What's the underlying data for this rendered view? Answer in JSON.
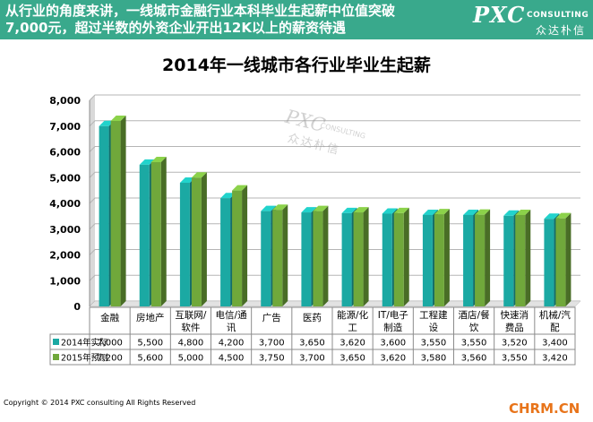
{
  "banner": {
    "title_line1": "从行业的角度来讲，一线城市金融行业本科毕业生起薪中位值突破",
    "title_line2": "7,000元，超过半数的外资企业开出12K以上的薪资待遇",
    "logo_main": "PXC",
    "logo_sub": "CONSULTING",
    "logo_cn": "众达朴信"
  },
  "watermark": {
    "main": "PXC",
    "sub": "CONSULTING",
    "cn": "众达朴信"
  },
  "footer": {
    "copyright": "Copyright © 2014 PXC consulting All Rights Reserved",
    "source": "CHRM.CN"
  },
  "colors": {
    "banner": "#39a98c",
    "series_2014": "#1ba9a3",
    "series_2015": "#70a83b"
  },
  "chart_data": {
    "type": "bar",
    "title": "2014年一线城市各行业毕业生起薪",
    "categories": [
      [
        "金融"
      ],
      [
        "房地产"
      ],
      [
        "互联网/",
        "软件"
      ],
      [
        "电信/通",
        "讯"
      ],
      [
        "广告"
      ],
      [
        "医药"
      ],
      [
        "能源/化",
        "工"
      ],
      [
        "IT/电子",
        "制造"
      ],
      [
        "工程建",
        "设"
      ],
      [
        "酒店/餐",
        "饮"
      ],
      [
        "快速消",
        "费品"
      ],
      [
        "机械/汽",
        "配"
      ]
    ],
    "series": [
      {
        "name": "2014年实际",
        "values": [
          7000,
          5500,
          4800,
          4200,
          3700,
          3650,
          3620,
          3600,
          3550,
          3550,
          3520,
          3400
        ],
        "labels": [
          "7,000",
          "5,500",
          "4,800",
          "4,200",
          "3,700",
          "3,650",
          "3,620",
          "3,600",
          "3,550",
          "3,550",
          "3,520",
          "3,400"
        ]
      },
      {
        "name": "2015年预测",
        "values": [
          7200,
          5600,
          5000,
          4500,
          3750,
          3700,
          3650,
          3620,
          3580,
          3560,
          3550,
          3420
        ],
        "labels": [
          "7,200",
          "5,600",
          "5,000",
          "4,500",
          "3,750",
          "3,700",
          "3,650",
          "3,620",
          "3,580",
          "3,560",
          "3,550",
          "3,420"
        ]
      }
    ],
    "ylim": [
      0,
      8000
    ],
    "yticks": [
      "0",
      "1,000",
      "2,000",
      "3,000",
      "4,000",
      "5,000",
      "6,000",
      "7,000",
      "8,000"
    ],
    "ytick_values": [
      0,
      1000,
      2000,
      3000,
      4000,
      5000,
      6000,
      7000,
      8000
    ],
    "grid": true,
    "legend": "data-table",
    "style": "3d-bar"
  }
}
